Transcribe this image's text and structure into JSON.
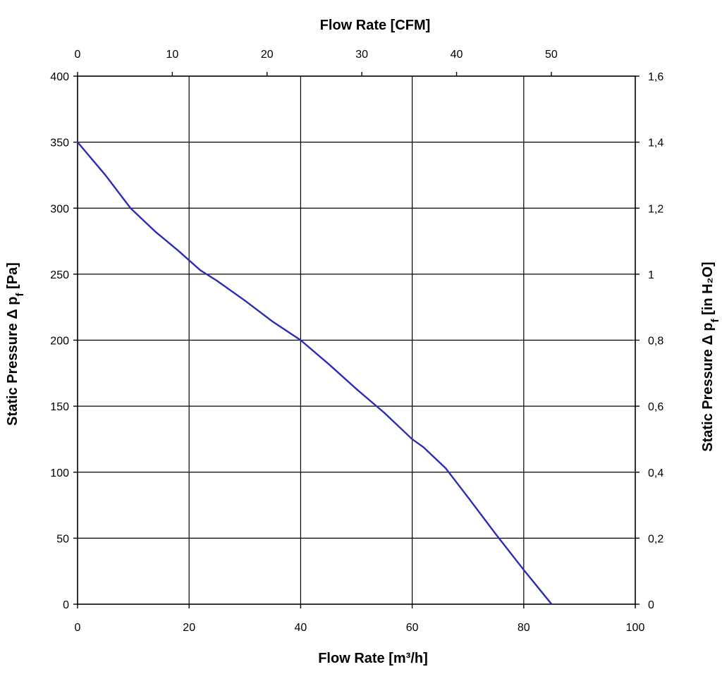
{
  "chart_data": {
    "type": "line",
    "title": "",
    "xlabel": "Flow Rate [m³/h]",
    "x2label": "Flow Rate [CFM]",
    "ylabel": "Static Pressure Δ p_f [Pa]",
    "y2label": "Static Pressure Δ p_f [in H₂O]",
    "xlim": [
      0,
      100
    ],
    "ylim": [
      0,
      400
    ],
    "x2lim": [
      0,
      58.86
    ],
    "y2lim": [
      0,
      1.6
    ],
    "x_ticks": [
      "0",
      "20",
      "40",
      "60",
      "80",
      "100"
    ],
    "x_tick_values": [
      0,
      20,
      40,
      60,
      80,
      100
    ],
    "y_ticks": [
      "0",
      "50",
      "100",
      "150",
      "200",
      "250",
      "300",
      "350",
      "400"
    ],
    "y_tick_values": [
      0,
      50,
      100,
      150,
      200,
      250,
      300,
      350,
      400
    ],
    "x2_ticks": [
      "0",
      "10",
      "20",
      "30",
      "40",
      "50"
    ],
    "x2_tick_values": [
      0,
      10,
      20,
      30,
      40,
      50
    ],
    "y2_ticks": [
      "0",
      "0,2",
      "0,4",
      "0,6",
      "0,8",
      "1",
      "1,2",
      "1,4",
      "1,6"
    ],
    "y2_tick_values": [
      0,
      0.2,
      0.4,
      0.6,
      0.8,
      1.0,
      1.2,
      1.4,
      1.6
    ],
    "grid": true,
    "line_color": "#2b2bb8",
    "series": [
      {
        "x": [
          0,
          5,
          9.5,
          14,
          18,
          22,
          25,
          30,
          35,
          40,
          45,
          50,
          55,
          60,
          62,
          66,
          70,
          75,
          80,
          85
        ],
        "values": [
          350,
          325,
          300,
          282,
          268,
          253,
          245,
          230,
          214,
          200,
          182,
          163,
          145,
          125,
          119,
          103,
          81,
          53,
          26,
          0
        ]
      }
    ]
  }
}
